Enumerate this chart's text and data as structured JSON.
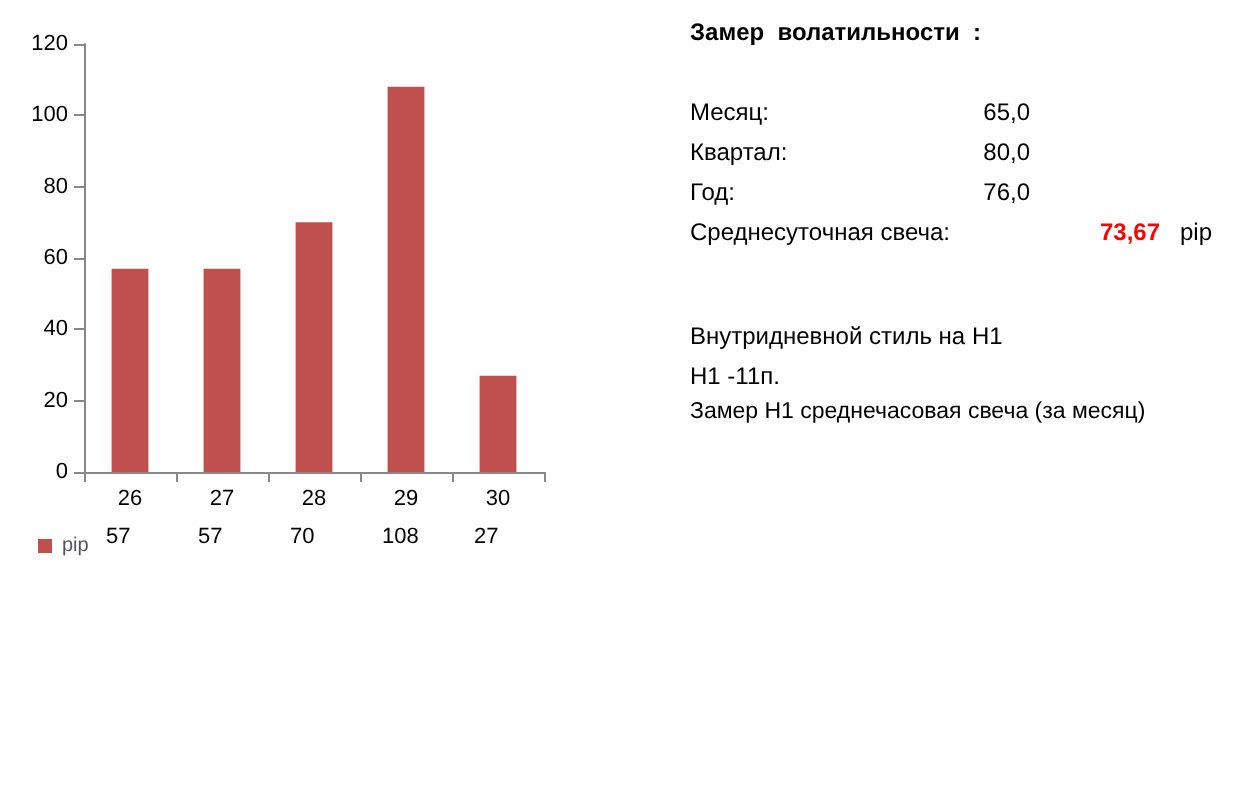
{
  "chart_data": {
    "type": "bar",
    "categories": [
      "26",
      "27",
      "28",
      "29",
      "30"
    ],
    "series": [
      {
        "name": "pip",
        "color": "#c0504d",
        "values": [
          57,
          57,
          70,
          108,
          27
        ]
      }
    ],
    "ylim": [
      0,
      120
    ],
    "yticks": [
      0,
      20,
      40,
      60,
      80,
      100,
      120
    ],
    "grid": false,
    "legend": "bottom left",
    "data_labels": true,
    "annotations": [
      "Замер  волатильности  :",
      "Месяц:",
      "65,0",
      "Квартал:",
      "80,0",
      "Год:",
      "76,0",
      "Среднесуточная свеча:",
      "73,67",
      "pip",
      "Внутридневной стиль на H1",
      "H1 -11п.",
      "Замер H1 среднечасовая свеча (за месяц)"
    ]
  }
}
